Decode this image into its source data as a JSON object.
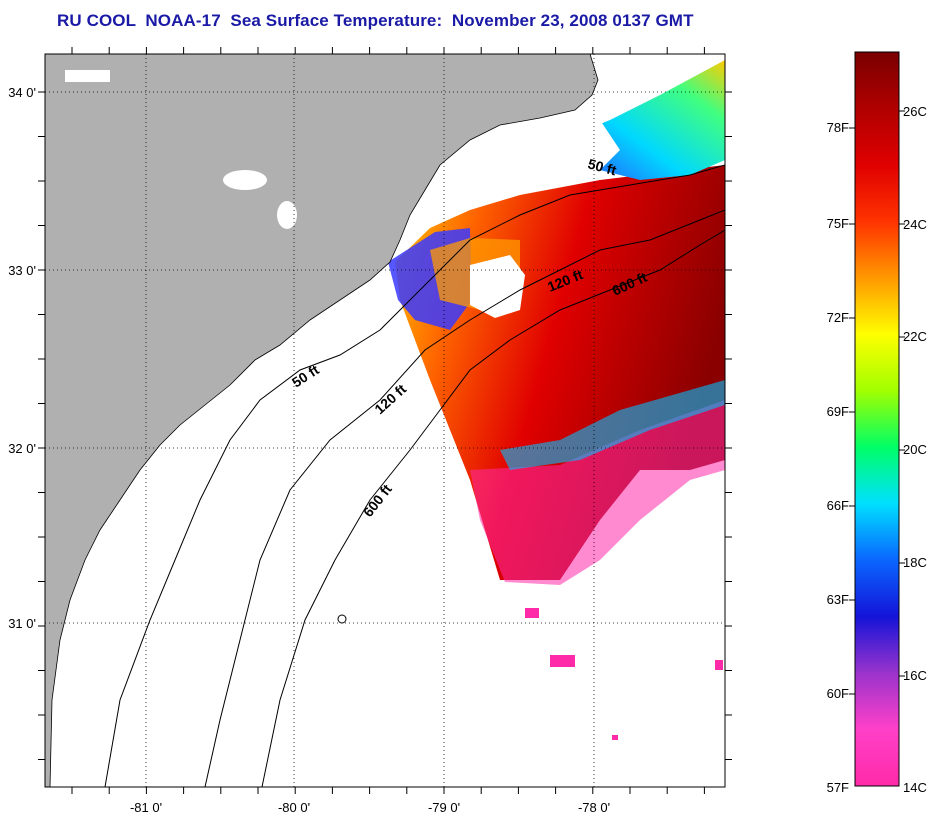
{
  "title": "RU COOL  NOAA-17  Sea Surface Temperature:  November 23, 2008 0137 GMT",
  "map": {
    "lon_ticks": [
      "-81 0'",
      "-80 0'",
      "-79 0'",
      "-78 0'"
    ],
    "lat_ticks": [
      "34 0'",
      "33 0'",
      "32 0'",
      "31 0'"
    ],
    "contours": [
      {
        "label": "50 ft"
      },
      {
        "label": "120 ft"
      },
      {
        "label": "600 ft"
      },
      {
        "label": "50 ft"
      },
      {
        "label": "120 ft"
      },
      {
        "label": "600 ft"
      }
    ],
    "colors": {
      "land": "#b0b0b0",
      "ocean": "#ffffff",
      "title": "#1a1aa6"
    }
  },
  "colorbar": {
    "f_labels": [
      "78F",
      "75F",
      "72F",
      "69F",
      "66F",
      "63F",
      "60F",
      "57F"
    ],
    "c_labels": [
      "26C",
      "24C",
      "22C",
      "20C",
      "18C",
      "16C",
      "14C"
    ],
    "range_f": [
      57,
      81
    ],
    "stops": [
      "#ff2aa8",
      "#ff40c8",
      "#9a33cc",
      "#1414d8",
      "#0a66ff",
      "#00e0ff",
      "#00ff66",
      "#a0ff00",
      "#ffff00",
      "#ff9900",
      "#ff3300",
      "#e00000",
      "#b00000",
      "#7a0000"
    ]
  }
}
